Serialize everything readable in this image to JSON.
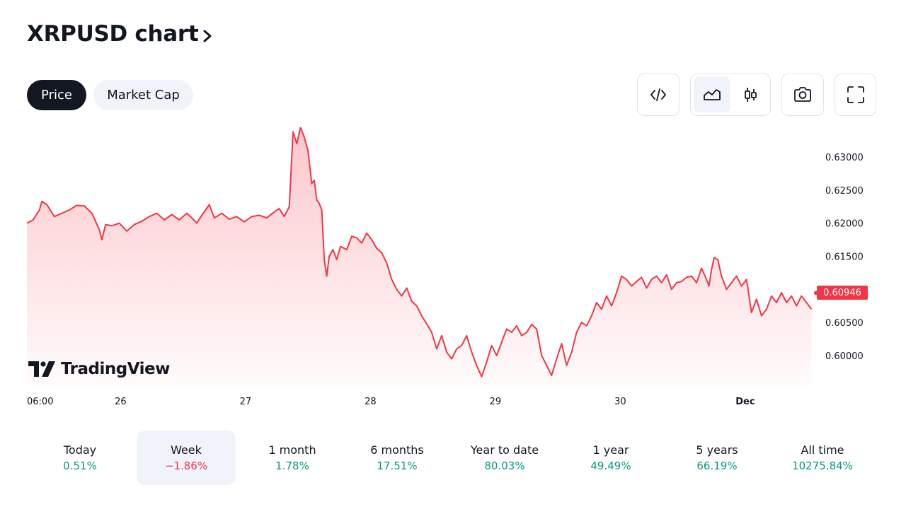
{
  "header": {
    "title": "XRPUSD chart"
  },
  "segments": {
    "price_label": "Price",
    "mcap_label": "Market Cap"
  },
  "toolbar": {
    "embed_icon": "code-icon",
    "area_icon": "area-chart-icon",
    "candle_icon": "candlestick-icon",
    "snapshot_icon": "camera-icon",
    "fullscreen_icon": "fullscreen-icon",
    "active_chart_type": "area"
  },
  "watermark": {
    "text": "TradingView"
  },
  "colors": {
    "line": "#f23645",
    "positive": "#089981",
    "negative": "#f23645",
    "dark": "#131722",
    "soft": "#f0f3fa"
  },
  "chart_data": {
    "type": "area",
    "symbol": "XRPUSD",
    "last_price_label": "0.60946",
    "last_price": 0.60946,
    "y_ticks": [
      "0.63000",
      "0.62500",
      "0.62000",
      "0.61500",
      "0.60500",
      "0.60000"
    ],
    "x_ticks": [
      {
        "label": "06:00",
        "x": 0.0,
        "bold": false
      },
      {
        "label": "26",
        "x": 0.75,
        "bold": false
      },
      {
        "label": "27",
        "x": 1.75,
        "bold": false
      },
      {
        "label": "28",
        "x": 2.75,
        "bold": false
      },
      {
        "label": "29",
        "x": 3.75,
        "bold": false
      },
      {
        "label": "30",
        "x": 4.75,
        "bold": false
      },
      {
        "label": "Dec",
        "x": 5.75,
        "bold": true
      }
    ],
    "ylim": [
      0.5955,
      0.6345
    ],
    "xlim": [
      0.0,
      6.3
    ],
    "series": [
      {
        "points": [
          [
            0.0,
            0.62
          ],
          [
            0.05,
            0.6205
          ],
          [
            0.1,
            0.622
          ],
          [
            0.12,
            0.6233
          ],
          [
            0.16,
            0.6228
          ],
          [
            0.22,
            0.621
          ],
          [
            0.28,
            0.6215
          ],
          [
            0.34,
            0.622
          ],
          [
            0.4,
            0.6227
          ],
          [
            0.46,
            0.6226
          ],
          [
            0.52,
            0.6215
          ],
          [
            0.58,
            0.619
          ],
          [
            0.6,
            0.6175
          ],
          [
            0.63,
            0.6198
          ],
          [
            0.68,
            0.6196
          ],
          [
            0.74,
            0.62
          ],
          [
            0.8,
            0.6188
          ],
          [
            0.86,
            0.6198
          ],
          [
            0.92,
            0.6203
          ],
          [
            0.98,
            0.621
          ],
          [
            1.04,
            0.6215
          ],
          [
            1.1,
            0.6205
          ],
          [
            1.16,
            0.6213
          ],
          [
            1.22,
            0.6205
          ],
          [
            1.28,
            0.6215
          ],
          [
            1.32,
            0.6208
          ],
          [
            1.36,
            0.62
          ],
          [
            1.4,
            0.6212
          ],
          [
            1.46,
            0.6228
          ],
          [
            1.5,
            0.6208
          ],
          [
            1.56,
            0.6215
          ],
          [
            1.62,
            0.6206
          ],
          [
            1.68,
            0.621
          ],
          [
            1.74,
            0.6202
          ],
          [
            1.8,
            0.621
          ],
          [
            1.86,
            0.6212
          ],
          [
            1.92,
            0.6208
          ],
          [
            1.98,
            0.6217
          ],
          [
            2.02,
            0.6222
          ],
          [
            2.06,
            0.621
          ],
          [
            2.1,
            0.6225
          ],
          [
            2.13,
            0.6338
          ],
          [
            2.16,
            0.632
          ],
          [
            2.19,
            0.6345
          ],
          [
            2.22,
            0.633
          ],
          [
            2.25,
            0.631
          ],
          [
            2.28,
            0.626
          ],
          [
            2.3,
            0.6265
          ],
          [
            2.32,
            0.6235
          ],
          [
            2.34,
            0.623
          ],
          [
            2.36,
            0.622
          ],
          [
            2.38,
            0.6145
          ],
          [
            2.4,
            0.612
          ],
          [
            2.42,
            0.615
          ],
          [
            2.45,
            0.616
          ],
          [
            2.48,
            0.6145
          ],
          [
            2.51,
            0.6165
          ],
          [
            2.56,
            0.616
          ],
          [
            2.6,
            0.618
          ],
          [
            2.64,
            0.6178
          ],
          [
            2.68,
            0.617
          ],
          [
            2.72,
            0.6185
          ],
          [
            2.76,
            0.6175
          ],
          [
            2.8,
            0.6162
          ],
          [
            2.84,
            0.6155
          ],
          [
            2.88,
            0.614
          ],
          [
            2.92,
            0.6115
          ],
          [
            2.96,
            0.61
          ],
          [
            3.0,
            0.609
          ],
          [
            3.04,
            0.6102
          ],
          [
            3.08,
            0.6082
          ],
          [
            3.12,
            0.6075
          ],
          [
            3.16,
            0.606
          ],
          [
            3.2,
            0.6048
          ],
          [
            3.24,
            0.6035
          ],
          [
            3.28,
            0.601
          ],
          [
            3.32,
            0.603
          ],
          [
            3.36,
            0.6005
          ],
          [
            3.4,
            0.5995
          ],
          [
            3.44,
            0.601
          ],
          [
            3.48,
            0.6015
          ],
          [
            3.52,
            0.603
          ],
          [
            3.56,
            0.6005
          ],
          [
            3.6,
            0.5985
          ],
          [
            3.64,
            0.5968
          ],
          [
            3.68,
            0.599
          ],
          [
            3.72,
            0.6015
          ],
          [
            3.76,
            0.6
          ],
          [
            3.8,
            0.602
          ],
          [
            3.84,
            0.604
          ],
          [
            3.88,
            0.6035
          ],
          [
            3.92,
            0.6045
          ],
          [
            3.96,
            0.603
          ],
          [
            4.0,
            0.6035
          ],
          [
            4.04,
            0.6047
          ],
          [
            4.08,
            0.604
          ],
          [
            4.12,
            0.6
          ],
          [
            4.16,
            0.5985
          ],
          [
            4.2,
            0.597
          ],
          [
            4.24,
            0.5995
          ],
          [
            4.28,
            0.6018
          ],
          [
            4.32,
            0.5985
          ],
          [
            4.36,
            0.6005
          ],
          [
            4.4,
            0.6035
          ],
          [
            4.44,
            0.605
          ],
          [
            4.48,
            0.6045
          ],
          [
            4.52,
            0.606
          ],
          [
            4.56,
            0.608
          ],
          [
            4.6,
            0.607
          ],
          [
            4.64,
            0.609
          ],
          [
            4.68,
            0.6075
          ],
          [
            4.72,
            0.6095
          ],
          [
            4.76,
            0.612
          ],
          [
            4.8,
            0.6115
          ],
          [
            4.84,
            0.6105
          ],
          [
            4.88,
            0.6112
          ],
          [
            4.92,
            0.6118
          ],
          [
            4.96,
            0.6102
          ],
          [
            5.0,
            0.6115
          ],
          [
            5.04,
            0.612
          ],
          [
            5.08,
            0.611
          ],
          [
            5.12,
            0.6122
          ],
          [
            5.16,
            0.61
          ],
          [
            5.2,
            0.611
          ],
          [
            5.24,
            0.6112
          ],
          [
            5.28,
            0.6118
          ],
          [
            5.32,
            0.612
          ],
          [
            5.36,
            0.611
          ],
          [
            5.4,
            0.6132
          ],
          [
            5.44,
            0.6115
          ],
          [
            5.46,
            0.6105
          ],
          [
            5.48,
            0.613
          ],
          [
            5.5,
            0.6148
          ],
          [
            5.53,
            0.6145
          ],
          [
            5.56,
            0.612
          ],
          [
            5.6,
            0.61
          ],
          [
            5.64,
            0.611
          ],
          [
            5.68,
            0.612
          ],
          [
            5.72,
            0.6105
          ],
          [
            5.76,
            0.6115
          ],
          [
            5.8,
            0.6065
          ],
          [
            5.84,
            0.6085
          ],
          [
            5.88,
            0.606
          ],
          [
            5.92,
            0.607
          ],
          [
            5.96,
            0.609
          ],
          [
            6.0,
            0.608
          ],
          [
            6.04,
            0.6095
          ],
          [
            6.08,
            0.608
          ],
          [
            6.12,
            0.609
          ],
          [
            6.16,
            0.6075
          ],
          [
            6.2,
            0.609
          ],
          [
            6.24,
            0.608
          ],
          [
            6.28,
            0.607
          ]
        ]
      }
    ]
  },
  "periods": [
    {
      "label": "Today",
      "value": "0.51%",
      "trend": "pos",
      "active": false
    },
    {
      "label": "Week",
      "value": "−1.86%",
      "trend": "neg",
      "active": true
    },
    {
      "label": "1 month",
      "value": "1.78%",
      "trend": "pos",
      "active": false
    },
    {
      "label": "6 months",
      "value": "17.51%",
      "trend": "pos",
      "active": false
    },
    {
      "label": "Year to date",
      "value": "80.03%",
      "trend": "pos",
      "active": false
    },
    {
      "label": "1 year",
      "value": "49.49%",
      "trend": "pos",
      "active": false
    },
    {
      "label": "5 years",
      "value": "66.19%",
      "trend": "pos",
      "active": false
    },
    {
      "label": "All time",
      "value": "10275.84%",
      "trend": "pos",
      "active": false
    }
  ]
}
